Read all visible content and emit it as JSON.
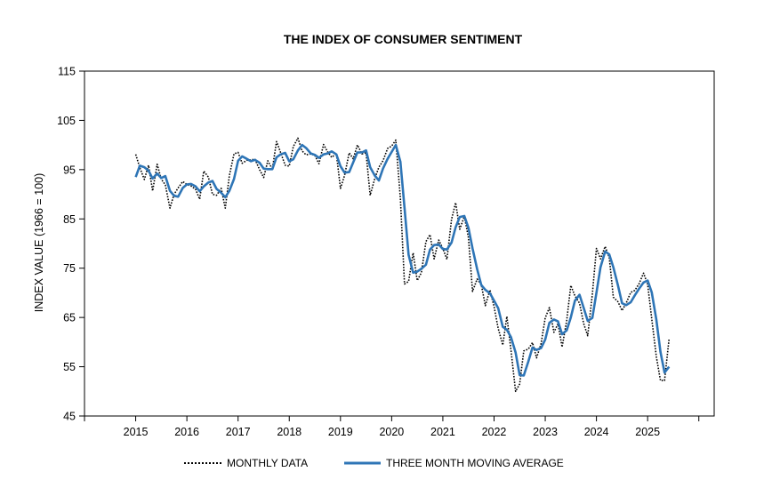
{
  "chart_data": {
    "type": "line",
    "title": "THE INDEX OF CONSUMER SENTIMENT",
    "ylabel": "INDEX VALUE (1966 = 100)",
    "xlabel": "",
    "ylim": [
      45,
      115
    ],
    "yticks": [
      45,
      55,
      65,
      75,
      85,
      95,
      105,
      115
    ],
    "xlim": [
      2014,
      2026.3
    ],
    "xticks": [
      "2015",
      "2016",
      "2017",
      "2018",
      "2019",
      "2020",
      "2021",
      "2022",
      "2023",
      "2024",
      "2025"
    ],
    "legend_position": "bottom-center",
    "series": [
      {
        "name": "MONTHLY DATA",
        "style": "dotted",
        "color": "#000000",
        "points": [
          [
            2015.0,
            98.1
          ],
          [
            2015.08,
            95.4
          ],
          [
            2015.17,
            93.0
          ],
          [
            2015.25,
            95.9
          ],
          [
            2015.33,
            90.7
          ],
          [
            2015.42,
            96.1
          ],
          [
            2015.5,
            93.1
          ],
          [
            2015.58,
            91.9
          ],
          [
            2015.67,
            87.2
          ],
          [
            2015.75,
            90.0
          ],
          [
            2015.83,
            91.3
          ],
          [
            2015.92,
            92.6
          ],
          [
            2016.0,
            92.0
          ],
          [
            2016.08,
            91.7
          ],
          [
            2016.17,
            91.0
          ],
          [
            2016.25,
            89.0
          ],
          [
            2016.33,
            94.7
          ],
          [
            2016.42,
            93.5
          ],
          [
            2016.5,
            90.0
          ],
          [
            2016.58,
            89.8
          ],
          [
            2016.67,
            91.2
          ],
          [
            2016.75,
            87.2
          ],
          [
            2016.83,
            93.8
          ],
          [
            2016.92,
            98.2
          ],
          [
            2017.0,
            98.5
          ],
          [
            2017.08,
            96.3
          ],
          [
            2017.17,
            96.9
          ],
          [
            2017.25,
            97.0
          ],
          [
            2017.33,
            97.1
          ],
          [
            2017.42,
            95.0
          ],
          [
            2017.5,
            93.4
          ],
          [
            2017.58,
            96.8
          ],
          [
            2017.67,
            95.1
          ],
          [
            2017.75,
            100.7
          ],
          [
            2017.83,
            98.5
          ],
          [
            2017.92,
            95.9
          ],
          [
            2018.0,
            95.7
          ],
          [
            2018.08,
            99.7
          ],
          [
            2018.17,
            101.4
          ],
          [
            2018.25,
            98.8
          ],
          [
            2018.33,
            98.0
          ],
          [
            2018.42,
            98.2
          ],
          [
            2018.5,
            97.9
          ],
          [
            2018.58,
            96.2
          ],
          [
            2018.67,
            100.1
          ],
          [
            2018.75,
            98.6
          ],
          [
            2018.83,
            97.5
          ],
          [
            2018.92,
            98.3
          ],
          [
            2019.0,
            91.2
          ],
          [
            2019.08,
            93.8
          ],
          [
            2019.17,
            98.4
          ],
          [
            2019.25,
            97.2
          ],
          [
            2019.33,
            100.0
          ],
          [
            2019.42,
            98.2
          ],
          [
            2019.5,
            98.4
          ],
          [
            2019.58,
            89.8
          ],
          [
            2019.67,
            93.2
          ],
          [
            2019.75,
            95.5
          ],
          [
            2019.83,
            96.8
          ],
          [
            2019.92,
            99.3
          ],
          [
            2020.0,
            99.8
          ],
          [
            2020.08,
            101.0
          ],
          [
            2020.17,
            89.1
          ],
          [
            2020.25,
            71.8
          ],
          [
            2020.33,
            72.3
          ],
          [
            2020.42,
            78.1
          ],
          [
            2020.5,
            72.5
          ],
          [
            2020.58,
            74.1
          ],
          [
            2020.67,
            80.4
          ],
          [
            2020.75,
            81.8
          ],
          [
            2020.83,
            76.9
          ],
          [
            2020.92,
            80.7
          ],
          [
            2021.0,
            79.0
          ],
          [
            2021.08,
            76.8
          ],
          [
            2021.17,
            84.9
          ],
          [
            2021.25,
            88.3
          ],
          [
            2021.33,
            82.9
          ],
          [
            2021.42,
            85.5
          ],
          [
            2021.5,
            81.2
          ],
          [
            2021.58,
            70.3
          ],
          [
            2021.67,
            72.8
          ],
          [
            2021.75,
            71.7
          ],
          [
            2021.83,
            67.4
          ],
          [
            2021.92,
            70.6
          ],
          [
            2022.0,
            67.2
          ],
          [
            2022.08,
            62.8
          ],
          [
            2022.17,
            59.4
          ],
          [
            2022.25,
            65.2
          ],
          [
            2022.33,
            58.4
          ],
          [
            2022.42,
            50.0
          ],
          [
            2022.5,
            51.5
          ],
          [
            2022.58,
            58.2
          ],
          [
            2022.67,
            58.6
          ],
          [
            2022.75,
            59.9
          ],
          [
            2022.83,
            56.8
          ],
          [
            2022.92,
            59.7
          ],
          [
            2023.0,
            64.9
          ],
          [
            2023.08,
            67.0
          ],
          [
            2023.17,
            62.0
          ],
          [
            2023.25,
            63.7
          ],
          [
            2023.33,
            59.0
          ],
          [
            2023.42,
            64.4
          ],
          [
            2023.5,
            71.5
          ],
          [
            2023.58,
            69.4
          ],
          [
            2023.67,
            67.9
          ],
          [
            2023.75,
            63.8
          ],
          [
            2023.83,
            61.3
          ],
          [
            2023.92,
            69.7
          ],
          [
            2024.0,
            79.0
          ],
          [
            2024.08,
            76.9
          ],
          [
            2024.17,
            79.4
          ],
          [
            2024.25,
            77.2
          ],
          [
            2024.33,
            69.1
          ],
          [
            2024.42,
            68.2
          ],
          [
            2024.5,
            66.4
          ],
          [
            2024.58,
            67.9
          ],
          [
            2024.67,
            70.1
          ],
          [
            2024.75,
            70.5
          ],
          [
            2024.83,
            71.8
          ],
          [
            2024.92,
            74.0
          ],
          [
            2025.0,
            71.7
          ],
          [
            2025.08,
            64.7
          ],
          [
            2025.17,
            57.0
          ],
          [
            2025.25,
            52.2
          ],
          [
            2025.33,
            52.2
          ],
          [
            2025.42,
            60.7
          ]
        ]
      },
      {
        "name": "THREE MONTH MOVING AVERAGE",
        "style": "solid",
        "color": "#2E75B6",
        "points": [
          [
            2015.0,
            93.5
          ],
          [
            2015.08,
            95.8
          ],
          [
            2015.17,
            95.5
          ],
          [
            2015.25,
            94.8
          ],
          [
            2015.33,
            93.2
          ],
          [
            2015.42,
            94.2
          ],
          [
            2015.5,
            93.3
          ],
          [
            2015.58,
            93.7
          ],
          [
            2015.67,
            90.7
          ],
          [
            2015.75,
            89.7
          ],
          [
            2015.83,
            89.5
          ],
          [
            2015.92,
            91.3
          ],
          [
            2016.0,
            92.0
          ],
          [
            2016.08,
            92.1
          ],
          [
            2016.17,
            91.6
          ],
          [
            2016.25,
            90.6
          ],
          [
            2016.33,
            91.6
          ],
          [
            2016.42,
            92.4
          ],
          [
            2016.5,
            92.7
          ],
          [
            2016.58,
            91.1
          ],
          [
            2016.67,
            90.3
          ],
          [
            2016.75,
            89.4
          ],
          [
            2016.83,
            90.7
          ],
          [
            2016.92,
            93.1
          ],
          [
            2017.0,
            96.8
          ],
          [
            2017.08,
            97.7
          ],
          [
            2017.17,
            97.2
          ],
          [
            2017.25,
            96.7
          ],
          [
            2017.33,
            97.0
          ],
          [
            2017.42,
            96.4
          ],
          [
            2017.5,
            95.2
          ],
          [
            2017.58,
            95.1
          ],
          [
            2017.67,
            95.1
          ],
          [
            2017.75,
            97.5
          ],
          [
            2017.83,
            98.1
          ],
          [
            2017.92,
            98.4
          ],
          [
            2018.0,
            96.7
          ],
          [
            2018.08,
            97.1
          ],
          [
            2018.17,
            98.9
          ],
          [
            2018.25,
            100.0
          ],
          [
            2018.33,
            99.4
          ],
          [
            2018.42,
            98.3
          ],
          [
            2018.5,
            98.0
          ],
          [
            2018.58,
            97.4
          ],
          [
            2018.67,
            98.1
          ],
          [
            2018.75,
            98.3
          ],
          [
            2018.83,
            98.7
          ],
          [
            2018.92,
            98.1
          ],
          [
            2019.0,
            95.7
          ],
          [
            2019.08,
            94.4
          ],
          [
            2019.17,
            94.5
          ],
          [
            2019.25,
            96.5
          ],
          [
            2019.33,
            98.5
          ],
          [
            2019.42,
            98.5
          ],
          [
            2019.5,
            98.9
          ],
          [
            2019.58,
            95.5
          ],
          [
            2019.67,
            93.8
          ],
          [
            2019.75,
            92.8
          ],
          [
            2019.83,
            95.2
          ],
          [
            2019.92,
            97.2
          ],
          [
            2020.0,
            98.6
          ],
          [
            2020.08,
            100.0
          ],
          [
            2020.17,
            96.6
          ],
          [
            2020.25,
            87.3
          ],
          [
            2020.33,
            77.7
          ],
          [
            2020.42,
            74.1
          ],
          [
            2020.5,
            74.3
          ],
          [
            2020.58,
            74.9
          ],
          [
            2020.67,
            75.7
          ],
          [
            2020.75,
            78.8
          ],
          [
            2020.83,
            79.7
          ],
          [
            2020.92,
            79.8
          ],
          [
            2021.0,
            78.9
          ],
          [
            2021.08,
            78.8
          ],
          [
            2021.17,
            80.2
          ],
          [
            2021.25,
            83.3
          ],
          [
            2021.33,
            85.4
          ],
          [
            2021.42,
            85.6
          ],
          [
            2021.5,
            83.2
          ],
          [
            2021.58,
            79.0
          ],
          [
            2021.67,
            74.8
          ],
          [
            2021.75,
            71.6
          ],
          [
            2021.83,
            70.6
          ],
          [
            2021.92,
            69.9
          ],
          [
            2022.0,
            68.4
          ],
          [
            2022.08,
            66.9
          ],
          [
            2022.17,
            63.1
          ],
          [
            2022.25,
            62.5
          ],
          [
            2022.33,
            61.0
          ],
          [
            2022.42,
            57.9
          ],
          [
            2022.5,
            53.3
          ],
          [
            2022.58,
            53.2
          ],
          [
            2022.67,
            56.1
          ],
          [
            2022.75,
            58.9
          ],
          [
            2022.83,
            58.4
          ],
          [
            2022.92,
            58.8
          ],
          [
            2023.0,
            60.5
          ],
          [
            2023.08,
            63.9
          ],
          [
            2023.17,
            64.6
          ],
          [
            2023.25,
            64.2
          ],
          [
            2023.33,
            61.6
          ],
          [
            2023.42,
            62.4
          ],
          [
            2023.5,
            65.0
          ],
          [
            2023.58,
            68.4
          ],
          [
            2023.67,
            69.6
          ],
          [
            2023.75,
            67.0
          ],
          [
            2023.83,
            64.3
          ],
          [
            2023.92,
            64.9
          ],
          [
            2024.0,
            70.0
          ],
          [
            2024.08,
            75.2
          ],
          [
            2024.17,
            78.4
          ],
          [
            2024.25,
            77.8
          ],
          [
            2024.33,
            75.2
          ],
          [
            2024.42,
            71.5
          ],
          [
            2024.5,
            67.9
          ],
          [
            2024.58,
            67.5
          ],
          [
            2024.67,
            68.1
          ],
          [
            2024.75,
            69.5
          ],
          [
            2024.83,
            70.8
          ],
          [
            2024.92,
            72.1
          ],
          [
            2025.0,
            72.5
          ],
          [
            2025.08,
            70.1
          ],
          [
            2025.17,
            64.5
          ],
          [
            2025.25,
            58.0
          ],
          [
            2025.33,
            53.8
          ],
          [
            2025.42,
            55.0
          ]
        ]
      }
    ]
  }
}
